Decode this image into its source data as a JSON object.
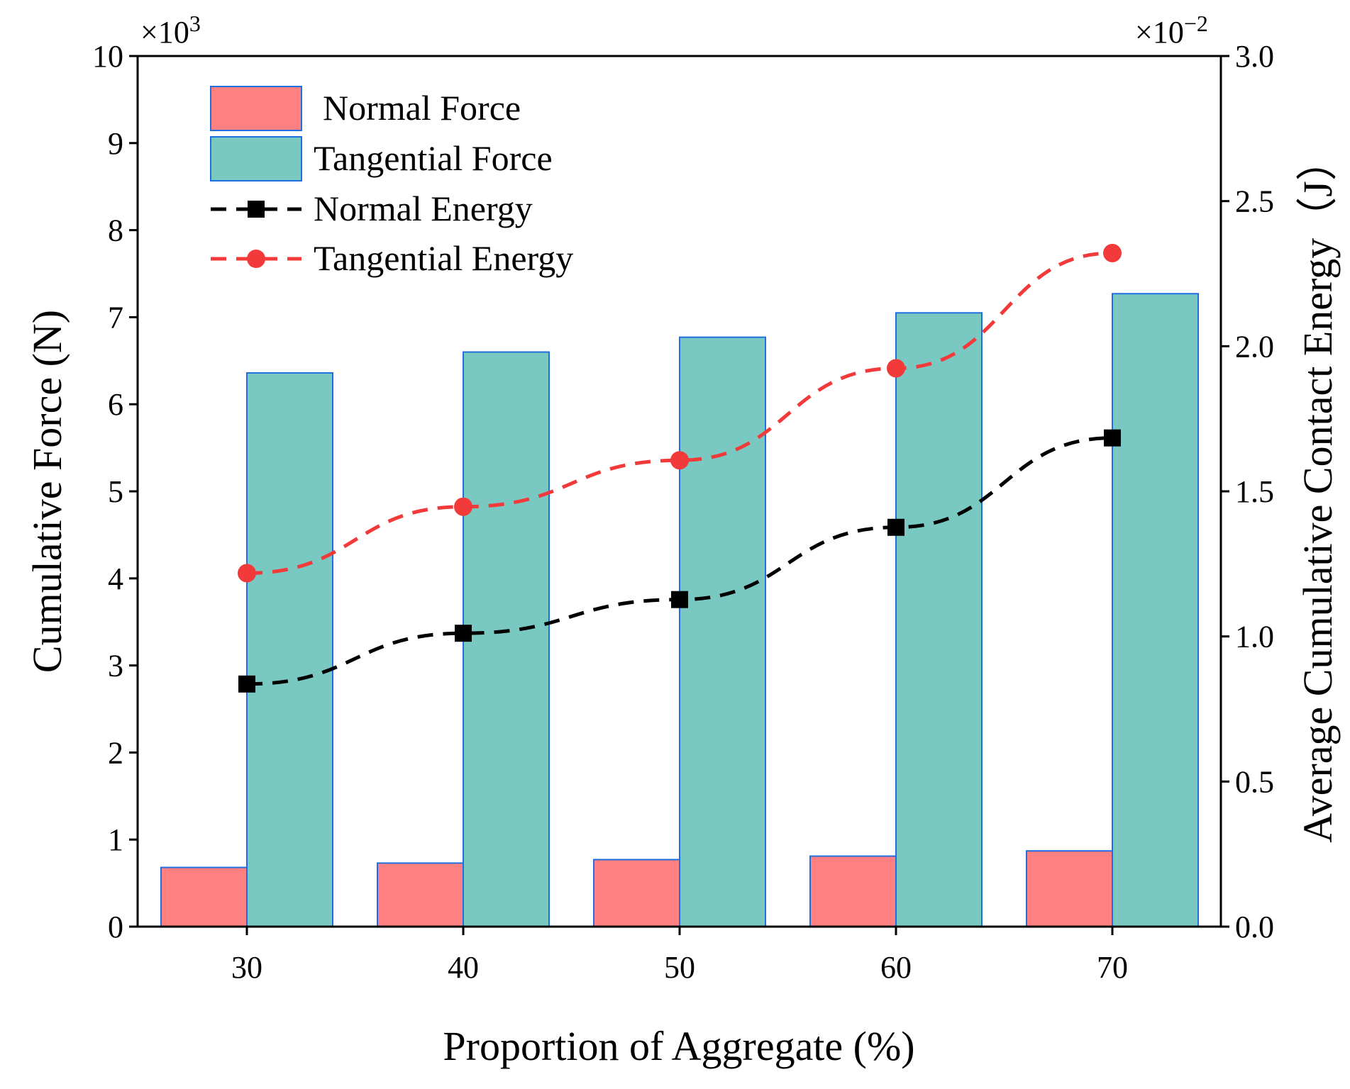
{
  "chart_data": {
    "type": "bar",
    "xlabel": "Proportion of Aggregate (%)",
    "ylabel": "Cumulative Force (N)",
    "y2label": "Average Cumulative Contact Energy（J）",
    "y_multiplier": "×10",
    "y_multiplier_exp": "3",
    "y2_multiplier": "×10",
    "y2_multiplier_exp": "−2",
    "categories": [
      "30",
      "40",
      "50",
      "60",
      "70"
    ],
    "ylim": [
      0,
      10
    ],
    "y2lim": [
      0,
      3.0
    ],
    "yticks": [
      "0",
      "1",
      "2",
      "3",
      "4",
      "5",
      "6",
      "7",
      "8",
      "9",
      "10"
    ],
    "y2ticks": [
      "0.0",
      "0.5",
      "1.0",
      "1.5",
      "2.0",
      "2.5",
      "3.0"
    ],
    "series": [
      {
        "name": "Normal Force",
        "kind": "bar",
        "axis": "left",
        "color": "#ff8080",
        "edge": "#1f6fe0",
        "values": [
          0.68,
          0.73,
          0.77,
          0.81,
          0.87
        ]
      },
      {
        "name": "Tangential Force",
        "kind": "bar",
        "axis": "left",
        "color": "#79c9c2",
        "edge": "#1f6fe0",
        "values": [
          6.36,
          6.6,
          6.77,
          7.05,
          7.27
        ]
      },
      {
        "name": "Normal Energy",
        "kind": "line",
        "axis": "right",
        "color": "#000000",
        "marker": "square",
        "values": [
          0.836,
          1.011,
          1.127,
          1.376,
          1.684
        ]
      },
      {
        "name": "Tangential Energy",
        "kind": "line",
        "axis": "right",
        "color": "#f23a3a",
        "marker": "circle",
        "values": [
          1.218,
          1.447,
          1.607,
          1.924,
          2.321
        ]
      }
    ],
    "legend_position": "top-left",
    "grid": false
  }
}
